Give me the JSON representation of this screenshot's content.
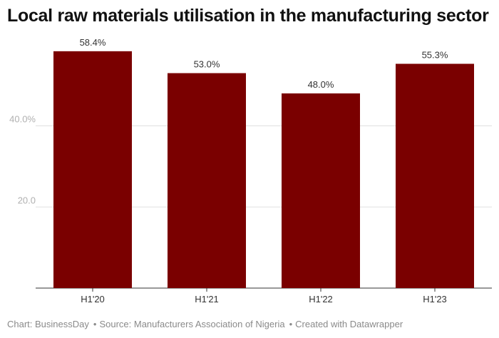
{
  "title": "Local raw materials utilisation in the manufacturing sector",
  "footer": {
    "chart": "Chart: BusinessDay",
    "source": "Source: Manufacturers Association of Nigeria",
    "created": "Created with Datawrapper"
  },
  "colors": {
    "bar": "#7a0000",
    "grid": "#e0e0e0",
    "axis": "#333333",
    "tick": "#b0b0b0",
    "label": "#333333"
  },
  "chart_data": {
    "type": "bar",
    "title": "Local raw materials utilisation in the manufacturing sector",
    "categories": [
      "H1'20",
      "H1'21",
      "H1'22",
      "H1'23"
    ],
    "values": [
      58.4,
      53.0,
      48.0,
      55.3
    ],
    "value_labels": [
      "58.4%",
      "53.0%",
      "48.0%",
      "55.3%"
    ],
    "yticks": [
      20,
      40
    ],
    "ytick_labels": [
      "20.0",
      "40.0%"
    ],
    "ylim": [
      0,
      60
    ],
    "xlabel": "",
    "ylabel": "",
    "grid": true
  }
}
